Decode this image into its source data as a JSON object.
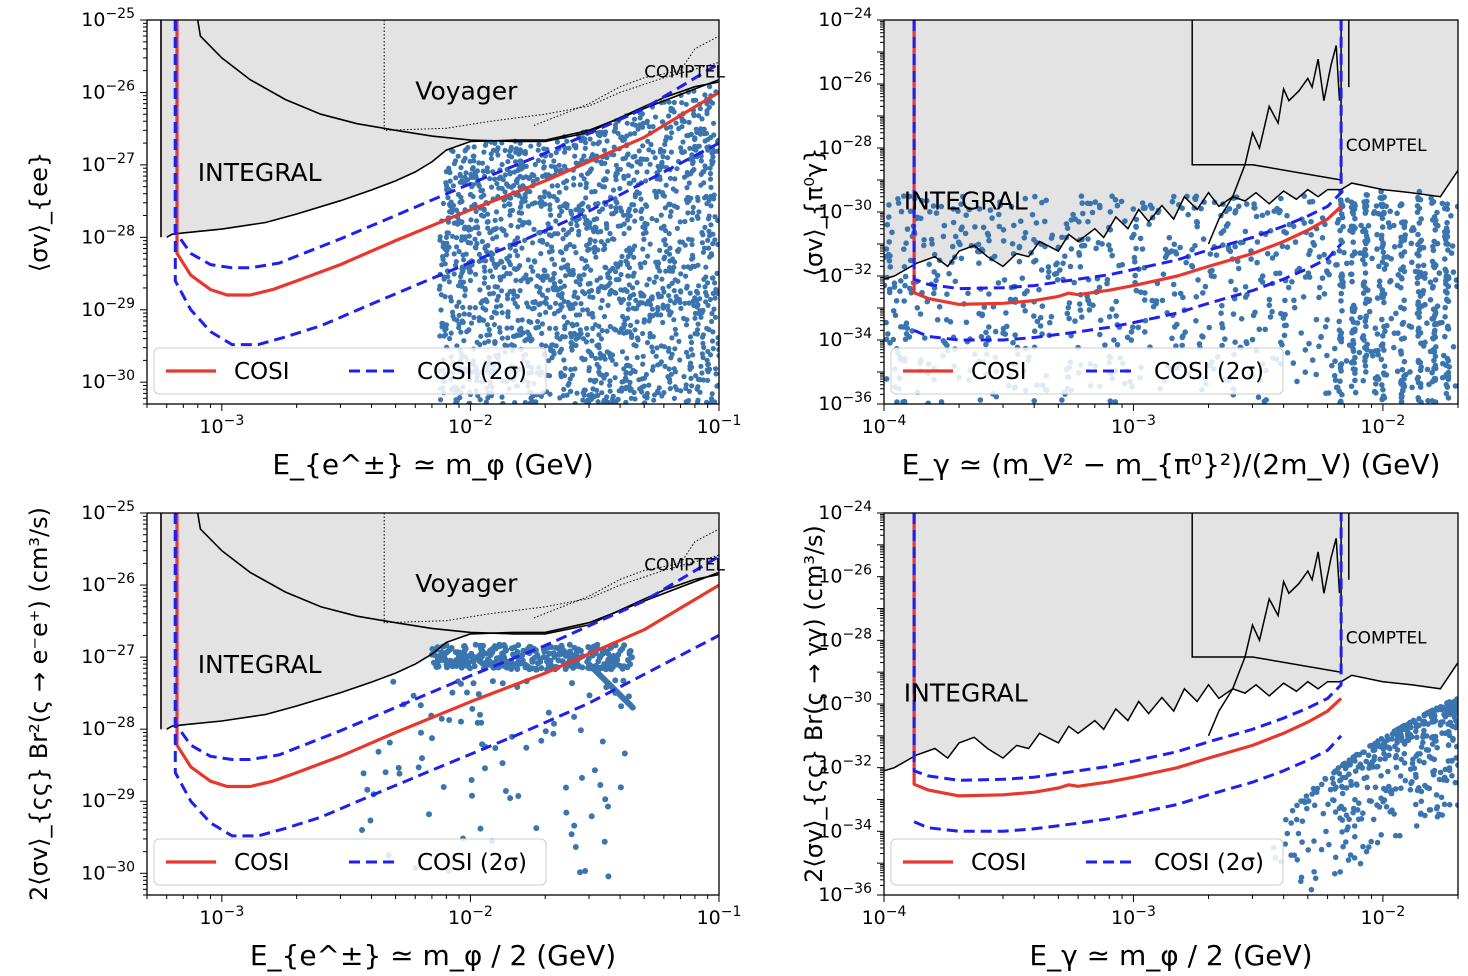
{
  "figure": "Four-panel log-log plot of annihilation cross-section constraints",
  "chart_data": [
    {
      "type": "scatter",
      "panel": "top-left",
      "xlabel": "E_{e^±} ≃ m_φ (GeV)",
      "ylabel": "⟨σv⟩_{ee}",
      "x_scale": "log",
      "y_scale": "log",
      "xlim": [
        0.0005,
        0.1
      ],
      "ylim": [
        5e-31,
        1e-25
      ],
      "x_ticks": [
        {
          "value": 0.001,
          "base": "10",
          "exp": "−3"
        },
        {
          "value": 0.01,
          "base": "10",
          "exp": "−2"
        },
        {
          "value": 0.1,
          "base": "10",
          "exp": "−1"
        }
      ],
      "y_ticks": [
        {
          "value": 1e-30,
          "base": "10",
          "exp": "−30"
        },
        {
          "value": 1e-29,
          "base": "10",
          "exp": "−29"
        },
        {
          "value": 1e-28,
          "base": "10",
          "exp": "−28"
        },
        {
          "value": 1e-27,
          "base": "10",
          "exp": "−27"
        },
        {
          "value": 1e-26,
          "base": "10",
          "exp": "−26"
        },
        {
          "value": 1e-25,
          "base": "10",
          "exp": "−25"
        }
      ],
      "regions": [
        {
          "name": "INTEGRAL",
          "label_at": [
            0.0008,
            6e-28
          ]
        },
        {
          "name": "Voyager",
          "label_at": [
            0.006,
            8e-27
          ]
        },
        {
          "name": "COMPTEL",
          "label_at": [
            0.05,
            1.6e-26
          ]
        }
      ],
      "series": [
        {
          "name": "COSI",
          "style": "solid",
          "color": "#e8372c",
          "x": [
            0.00066,
            0.00066,
            0.00075,
            0.0009,
            0.00105,
            0.0013,
            0.0016,
            0.002,
            0.003,
            0.005,
            0.01,
            0.02,
            0.05,
            0.1
          ],
          "y": [
            1e-25,
            6e-29,
            3e-29,
            1.9e-29,
            1.6e-29,
            1.6e-29,
            1.9e-29,
            2.5e-29,
            4.2e-29,
            9e-29,
            2.4e-28,
            6e-28,
            2.4e-27,
            1e-26
          ]
        },
        {
          "name": "COSI (2σ)",
          "style": "dashed",
          "color": "#1f1ff0",
          "x": [
            0.00065,
            0.00065,
            0.00075,
            0.0009,
            0.0011,
            0.0013,
            0.0017,
            0.002,
            0.003,
            0.005,
            0.01,
            0.02,
            0.05,
            0.1
          ],
          "y": [
            1e-25,
            1.2e-28,
            6e-29,
            4.2e-29,
            3.8e-29,
            3.8e-29,
            4.4e-29,
            5.5e-29,
            9.5e-29,
            2e-28,
            5.5e-28,
            1.45e-27,
            6e-27,
            2.5e-26
          ]
        },
        {
          "name": "COSI (2σ) lower",
          "style": "dashed",
          "color": "#1f1ff0",
          "x": [
            0.00065,
            0.00065,
            0.00075,
            0.0009,
            0.0011,
            0.0014,
            0.0018,
            0.0025,
            0.004,
            0.007,
            0.015,
            0.03,
            0.06,
            0.1
          ],
          "y": [
            1e-25,
            2.5e-29,
            1e-29,
            5e-30,
            3.3e-30,
            3.3e-30,
            4.2e-30,
            6e-30,
            1.2e-29,
            2.7e-29,
            8e-29,
            2.3e-28,
            8e-28,
            2e-27
          ]
        }
      ],
      "scatter_points": "dense band of DM model points for E between 7.5e-3 and 1e-1 GeV, bounded above by the INTEGRAL/COMPTEL limit",
      "legend": {
        "entries": [
          "COSI",
          "COSI (2σ)"
        ],
        "placement": "lower-left"
      }
    },
    {
      "type": "scatter",
      "panel": "top-right",
      "xlabel": "E_γ ≃ (m_V² − m_{π⁰}²)/(2m_V) (GeV)",
      "ylabel": "⟨σv⟩_{π⁰γ}",
      "x_scale": "log",
      "y_scale": "log",
      "xlim": [
        0.0001,
        0.02
      ],
      "ylim": [
        1e-36,
        1e-24
      ],
      "x_ticks": [
        {
          "value": 0.0001,
          "base": "10",
          "exp": "−4"
        },
        {
          "value": 0.001,
          "base": "10",
          "exp": "−3"
        },
        {
          "value": 0.01,
          "base": "10",
          "exp": "−2"
        }
      ],
      "y_ticks": [
        {
          "value": 1e-36,
          "base": "10",
          "exp": "−36"
        },
        {
          "value": 1e-34,
          "base": "10",
          "exp": "−34"
        },
        {
          "value": 1e-32,
          "base": "10",
          "exp": "−32"
        },
        {
          "value": 1e-30,
          "base": "10",
          "exp": "−30"
        },
        {
          "value": 1e-28,
          "base": "10",
          "exp": "−28"
        },
        {
          "value": 1e-26,
          "base": "10",
          "exp": "−26"
        },
        {
          "value": 1e-24,
          "base": "10",
          "exp": "−24"
        }
      ],
      "regions": [
        {
          "name": "INTEGRAL",
          "label_at": [
            0.00012,
            1.2e-30
          ]
        },
        {
          "name": "COMPTEL",
          "label_at": [
            0.0071,
            8e-29
          ]
        }
      ],
      "series": [
        {
          "name": "COSI",
          "style": "solid",
          "color": "#e8372c",
          "x": [
            0.000132,
            0.000132,
            0.00015,
            0.0002,
            0.0003,
            0.0004,
            0.0005,
            0.00055,
            0.0006,
            0.0008,
            0.001,
            0.0015,
            0.002,
            0.003,
            0.004,
            0.005,
            0.006,
            0.0068
          ],
          "y": [
            1e-24,
            3e-33,
            2e-33,
            1.3e-33,
            1.4e-33,
            1.7e-33,
            2.3e-33,
            2.9e-33,
            2.6e-33,
            3.6e-33,
            5e-33,
            1e-32,
            2e-32,
            5e-32,
            1.2e-31,
            2.7e-31,
            6e-31,
            1.5e-30
          ]
        },
        {
          "name": "COSI (2σ)",
          "style": "dashed",
          "color": "#1f1ff0",
          "x": [
            0.000132,
            0.000132,
            0.00015,
            0.0002,
            0.0003,
            0.0004,
            0.0005,
            0.0006,
            0.0008,
            0.001,
            0.0015,
            0.002,
            0.003,
            0.004,
            0.005,
            0.006,
            0.0068,
            0.0068
          ],
          "y": [
            1e-24,
            8e-33,
            5.5e-33,
            4e-33,
            4.3e-33,
            5e-33,
            6.5e-33,
            8e-33,
            1.1e-32,
            1.6e-32,
            3.2e-32,
            6.5e-32,
            1.6e-31,
            3.6e-31,
            7.5e-31,
            1.5e-30,
            4e-30,
            1e-24
          ]
        },
        {
          "name": "COSI (2σ) lower",
          "style": "dashed",
          "color": "#1f1ff0",
          "x": [
            0.000132,
            0.00015,
            0.0002,
            0.0003,
            0.0004,
            0.0005,
            0.0006,
            0.0008,
            0.001,
            0.0015,
            0.002,
            0.003,
            0.004,
            0.005,
            0.006,
            0.0068
          ],
          "y": [
            2e-34,
            1.3e-34,
            1e-34,
            1e-34,
            1.2e-34,
            1.5e-34,
            1.8e-34,
            2.5e-34,
            3.5e-34,
            7e-34,
            1.4e-33,
            3.5e-33,
            8e-33,
            1.7e-32,
            3.5e-32,
            1e-31
          ]
        }
      ],
      "scatter_points": "scattered DM model points across the full energy range, mostly below 1e-29",
      "legend": {
        "entries": [
          "COSI",
          "COSI (2σ)"
        ],
        "placement": "lower-left"
      }
    },
    {
      "type": "scatter",
      "panel": "bottom-left",
      "xlabel": "E_{e^±} ≃ m_φ / 2 (GeV)",
      "ylabel": "2⟨σv⟩_{ςς} Br²(ς → e⁻e⁺) (cm³/s)",
      "x_scale": "log",
      "y_scale": "log",
      "xlim": [
        0.0005,
        0.1
      ],
      "ylim": [
        5e-31,
        1e-25
      ],
      "x_ticks": [
        {
          "value": 0.001,
          "base": "10",
          "exp": "−3"
        },
        {
          "value": 0.01,
          "base": "10",
          "exp": "−2"
        },
        {
          "value": 0.1,
          "base": "10",
          "exp": "−1"
        }
      ],
      "y_ticks": [
        {
          "value": 1e-30,
          "base": "10",
          "exp": "−30"
        },
        {
          "value": 1e-29,
          "base": "10",
          "exp": "−29"
        },
        {
          "value": 1e-28,
          "base": "10",
          "exp": "−28"
        },
        {
          "value": 1e-27,
          "base": "10",
          "exp": "−27"
        },
        {
          "value": 1e-26,
          "base": "10",
          "exp": "−26"
        },
        {
          "value": 1e-25,
          "base": "10",
          "exp": "−25"
        }
      ],
      "regions": [
        {
          "name": "INTEGRAL",
          "label_at": [
            0.0008,
            6e-28
          ]
        },
        {
          "name": "Voyager",
          "label_at": [
            0.006,
            8e-27
          ]
        },
        {
          "name": "COMPTEL",
          "label_at": [
            0.05,
            1.6e-26
          ]
        }
      ],
      "series": [
        {
          "name": "COSI",
          "style": "solid",
          "color": "#e8372c",
          "x": [
            0.00066,
            0.00066,
            0.00075,
            0.0009,
            0.00105,
            0.0013,
            0.0016,
            0.002,
            0.003,
            0.005,
            0.01,
            0.02,
            0.05,
            0.1
          ],
          "y": [
            1e-25,
            6e-29,
            3e-29,
            1.9e-29,
            1.6e-29,
            1.6e-29,
            1.9e-29,
            2.5e-29,
            4.2e-29,
            9e-29,
            2.4e-28,
            6e-28,
            2.4e-27,
            1e-26
          ]
        },
        {
          "name": "COSI (2σ)",
          "style": "dashed",
          "color": "#1f1ff0",
          "x": [
            0.00065,
            0.00065,
            0.00075,
            0.0009,
            0.0011,
            0.0013,
            0.0017,
            0.002,
            0.003,
            0.005,
            0.01,
            0.02,
            0.05,
            0.1
          ],
          "y": [
            1e-25,
            1.2e-28,
            6e-29,
            4.2e-29,
            3.8e-29,
            3.8e-29,
            4.4e-29,
            5.5e-29,
            9.5e-29,
            2e-28,
            5.5e-28,
            1.45e-27,
            6e-27,
            2.5e-26
          ]
        },
        {
          "name": "COSI (2σ) lower",
          "style": "dashed",
          "color": "#1f1ff0",
          "x": [
            0.00065,
            0.00065,
            0.00075,
            0.0009,
            0.0011,
            0.0014,
            0.0018,
            0.0025,
            0.004,
            0.007,
            0.015,
            0.03,
            0.06,
            0.1
          ],
          "y": [
            1e-25,
            2.5e-29,
            1e-29,
            5e-30,
            3.3e-30,
            3.3e-30,
            4.2e-30,
            6e-30,
            1.2e-29,
            2.7e-29,
            8e-29,
            2.3e-28,
            8e-28,
            2e-27
          ]
        }
      ],
      "scatter_points": "DM model points clustered near 1e-27 for E between 7e-3 and 4.5e-2 GeV, with a tail down to 1e-30",
      "legend": {
        "entries": [
          "COSI",
          "COSI (2σ)"
        ],
        "placement": "lower-left"
      }
    },
    {
      "type": "scatter",
      "panel": "bottom-right",
      "xlabel": "E_γ ≃ m_φ / 2 (GeV)",
      "ylabel": "2⟨σv⟩_{ςς} Br(ς → γγ) (cm³/s)",
      "x_scale": "log",
      "y_scale": "log",
      "xlim": [
        0.0001,
        0.02
      ],
      "ylim": [
        1e-36,
        1e-24
      ],
      "x_ticks": [
        {
          "value": 0.0001,
          "base": "10",
          "exp": "−4"
        },
        {
          "value": 0.001,
          "base": "10",
          "exp": "−3"
        },
        {
          "value": 0.01,
          "base": "10",
          "exp": "−2"
        }
      ],
      "y_ticks": [
        {
          "value": 1e-36,
          "base": "10",
          "exp": "−36"
        },
        {
          "value": 1e-34,
          "base": "10",
          "exp": "−34"
        },
        {
          "value": 1e-32,
          "base": "10",
          "exp": "−32"
        },
        {
          "value": 1e-30,
          "base": "10",
          "exp": "−30"
        },
        {
          "value": 1e-28,
          "base": "10",
          "exp": "−28"
        },
        {
          "value": 1e-26,
          "base": "10",
          "exp": "−26"
        },
        {
          "value": 1e-24,
          "base": "10",
          "exp": "−24"
        }
      ],
      "regions": [
        {
          "name": "INTEGRAL",
          "label_at": [
            0.00012,
            1.2e-30
          ]
        },
        {
          "name": "COMPTEL",
          "label_at": [
            0.0071,
            8e-29
          ]
        }
      ],
      "series": [
        {
          "name": "COSI",
          "style": "solid",
          "color": "#e8372c",
          "x": [
            0.000132,
            0.000132,
            0.00015,
            0.0002,
            0.0003,
            0.0004,
            0.0005,
            0.00055,
            0.0006,
            0.0008,
            0.001,
            0.0015,
            0.002,
            0.003,
            0.004,
            0.005,
            0.006,
            0.0068
          ],
          "y": [
            1e-24,
            3e-33,
            2e-33,
            1.3e-33,
            1.4e-33,
            1.7e-33,
            2.3e-33,
            2.9e-33,
            2.6e-33,
            3.6e-33,
            5e-33,
            1e-32,
            2e-32,
            5e-32,
            1.2e-31,
            2.7e-31,
            6e-31,
            1.5e-30
          ]
        },
        {
          "name": "COSI (2σ)",
          "style": "dashed",
          "color": "#1f1ff0",
          "x": [
            0.000132,
            0.000132,
            0.00015,
            0.0002,
            0.0003,
            0.0004,
            0.0005,
            0.0006,
            0.0008,
            0.001,
            0.0015,
            0.002,
            0.003,
            0.004,
            0.005,
            0.006,
            0.0068,
            0.0068
          ],
          "y": [
            1e-24,
            8e-33,
            5.5e-33,
            4e-33,
            4.3e-33,
            5e-33,
            6.5e-33,
            8e-33,
            1.1e-32,
            1.6e-32,
            3.2e-32,
            6.5e-32,
            1.6e-31,
            3.6e-31,
            7.5e-31,
            1.5e-30,
            4e-30,
            1e-24
          ]
        },
        {
          "name": "COSI (2σ) lower",
          "style": "dashed",
          "color": "#1f1ff0",
          "x": [
            0.000132,
            0.00015,
            0.0002,
            0.0003,
            0.0004,
            0.0005,
            0.0006,
            0.0008,
            0.001,
            0.0015,
            0.002,
            0.003,
            0.004,
            0.005,
            0.006,
            0.0068
          ],
          "y": [
            2e-34,
            1.3e-34,
            1e-34,
            1e-34,
            1.2e-34,
            1.5e-34,
            1.8e-34,
            2.5e-34,
            3.5e-34,
            7e-34,
            1.4e-33,
            3.5e-33,
            8e-33,
            1.7e-32,
            3.5e-32,
            1e-31
          ]
        }
      ],
      "scatter_points": "DM model points rising from 1e-35 near E = 4e-3 GeV to 1e-30 near E = 2e-2 GeV",
      "legend": {
        "entries": [
          "COSI",
          "COSI (2σ)"
        ],
        "placement": "lower-left"
      }
    }
  ],
  "colors": {
    "excluded_fill": "#e3e3e3",
    "cosi": "#e8372c",
    "cosi_2sigma": "#1f1ff0",
    "points": "#3b75af",
    "limit_line": "#000000"
  }
}
